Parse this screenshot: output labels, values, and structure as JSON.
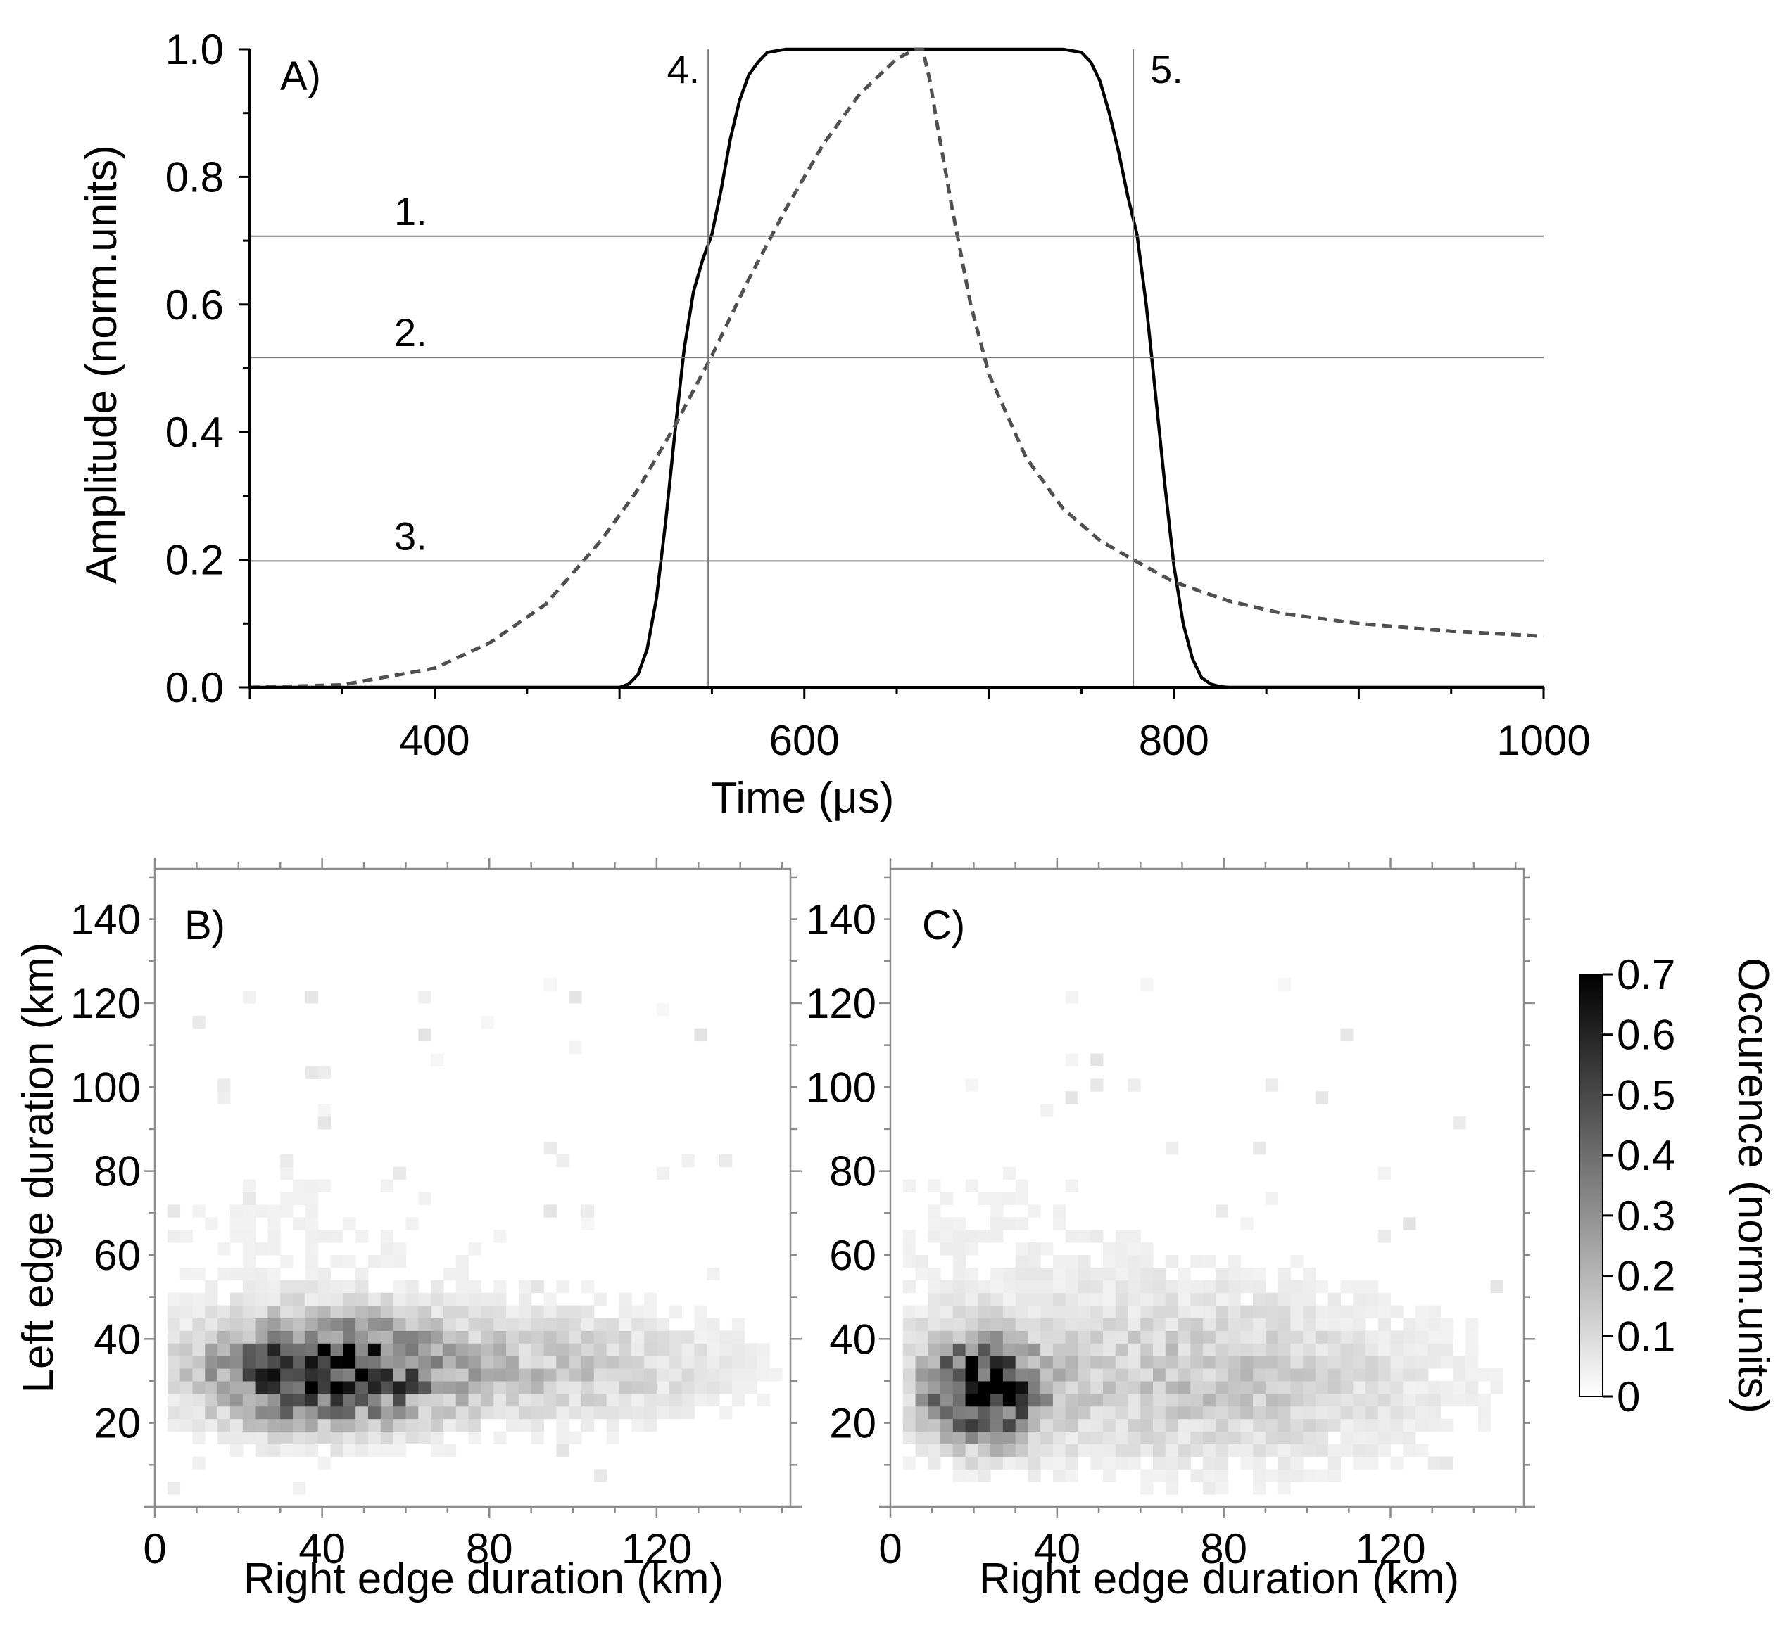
{
  "colors": {
    "solid_curve": "#000000",
    "dashed_curve": "#505050",
    "ref_lines": "#7a7a7a",
    "axes": "#000000",
    "frame": "#8c8c8c"
  },
  "chart_data": [
    {
      "id": "A",
      "type": "line",
      "panel_label": "A)",
      "xlabel": "Time (μs)",
      "ylabel": "Amplitude (norm.units)",
      "xlim": [
        300,
        1000
      ],
      "ylim": [
        0,
        1
      ],
      "xticks": [
        400,
        600,
        800,
        1000
      ],
      "xtick_labels": [
        "400",
        "600",
        "800",
        "1000"
      ],
      "yticks": [
        0,
        0.2,
        0.4,
        0.6,
        0.8,
        1.0
      ],
      "ytick_labels": [
        "0.0",
        "0.2",
        "0.4",
        "0.6",
        "0.8",
        "1.0"
      ],
      "series": [
        {
          "name": "solid pulse",
          "style": "solid",
          "x": [
            300,
            500,
            505,
            510,
            515,
            520,
            525,
            530,
            535,
            540,
            545,
            550,
            555,
            560,
            565,
            570,
            575,
            580,
            590,
            600,
            640,
            700,
            740,
            750,
            755,
            760,
            765,
            770,
            775,
            780,
            785,
            790,
            795,
            800,
            805,
            810,
            815,
            820,
            825,
            830,
            850,
            1000
          ],
          "y": [
            0,
            0,
            0.005,
            0.02,
            0.06,
            0.14,
            0.26,
            0.4,
            0.53,
            0.62,
            0.67,
            0.71,
            0.78,
            0.86,
            0.92,
            0.96,
            0.98,
            0.995,
            1.0,
            1.0,
            1.0,
            1.0,
            1.0,
            0.995,
            0.98,
            0.95,
            0.9,
            0.84,
            0.77,
            0.71,
            0.6,
            0.46,
            0.32,
            0.19,
            0.1,
            0.045,
            0.015,
            0.005,
            0.001,
            0,
            0,
            0
          ]
        },
        {
          "name": "dashed pulse",
          "style": "dashed",
          "x": [
            300,
            350,
            400,
            430,
            460,
            490,
            510,
            530,
            550,
            570,
            590,
            610,
            630,
            650,
            660,
            664,
            668,
            672,
            680,
            690,
            700,
            720,
            740,
            760,
            778,
            800,
            830,
            860,
            900,
            950,
            1000
          ],
          "y": [
            0,
            0.004,
            0.03,
            0.07,
            0.13,
            0.23,
            0.31,
            0.41,
            0.52,
            0.64,
            0.75,
            0.85,
            0.93,
            0.985,
            1.0,
            1.0,
            0.95,
            0.88,
            0.75,
            0.6,
            0.49,
            0.36,
            0.28,
            0.23,
            0.2,
            0.165,
            0.135,
            0.115,
            0.1,
            0.088,
            0.08
          ]
        }
      ],
      "reference_lines": {
        "horizontal": [
          {
            "label": "1.",
            "y": 0.707
          },
          {
            "label": "2.",
            "y": 0.517
          },
          {
            "label": "3.",
            "y": 0.198
          }
        ],
        "vertical": [
          {
            "label": "4.",
            "x": 548
          },
          {
            "label": "5.",
            "x": 778
          }
        ]
      }
    },
    {
      "id": "B",
      "type": "heatmap",
      "panel_label": "B)",
      "xlabel": "Right edge duration (km)",
      "ylabel": "Left edge duration (km)",
      "xlim": [
        0,
        152
      ],
      "ylim": [
        0,
        152
      ],
      "xticks": [
        0,
        40,
        80,
        120
      ],
      "xtick_labels": [
        "0",
        "40",
        "80",
        "120"
      ],
      "yticks": [
        20,
        40,
        60,
        80,
        100,
        120,
        140
      ],
      "ytick_labels": [
        "20",
        "40",
        "60",
        "80",
        "100",
        "120",
        "140"
      ],
      "bin_size_km": 3,
      "distribution_center_km": [
        40,
        32
      ],
      "distribution_spread_km": [
        18,
        8
      ],
      "tail_center_km": [
        95,
        33
      ],
      "tail_spread_km": [
        30,
        9
      ],
      "peak_occurrence": 0.7
    },
    {
      "id": "C",
      "type": "heatmap",
      "panel_label": "C)",
      "xlabel": "Right edge duration (km)",
      "ylabel": "",
      "xlim": [
        0,
        152
      ],
      "ylim": [
        0,
        152
      ],
      "xticks": [
        0,
        40,
        80,
        120
      ],
      "xtick_labels": [
        "0",
        "40",
        "80",
        "120"
      ],
      "yticks": [
        20,
        40,
        60,
        80,
        100,
        120,
        140
      ],
      "ytick_labels": [
        "20",
        "40",
        "60",
        "80",
        "100",
        "120",
        "140"
      ],
      "bin_size_km": 3,
      "distribution_center_km": [
        22,
        28
      ],
      "distribution_spread_km": [
        9,
        8
      ],
      "tail_center_km": [
        75,
        30
      ],
      "tail_spread_km": [
        40,
        14
      ],
      "peak_occurrence": 0.7
    }
  ],
  "colorbar": {
    "label": "Occurence (norm.units)",
    "min": 0,
    "max": 0.7,
    "ticks": [
      0,
      0.1,
      0.2,
      0.3,
      0.4,
      0.5,
      0.6,
      0.7
    ],
    "tick_labels": [
      "0",
      "0.1",
      "0.2",
      "0.3",
      "0.4",
      "0.5",
      "0.6",
      "0.7"
    ]
  }
}
